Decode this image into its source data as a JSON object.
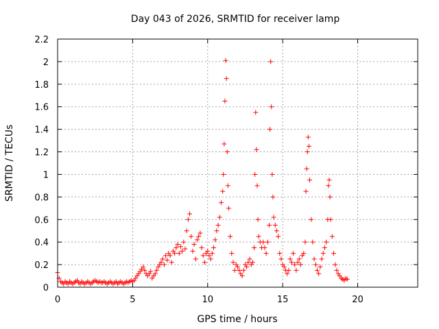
{
  "chart_data": {
    "type": "scatter",
    "title": "Day 043 of 2026, SRMTID for receiver lamp",
    "xlabel": "GPS time / hours",
    "ylabel": "SRMTID / TECUs",
    "xlim": [
      0,
      24
    ],
    "ylim": [
      0,
      2.2
    ],
    "xticks": [
      0,
      5,
      10,
      15,
      20
    ],
    "yticks": [
      0,
      0.2,
      0.4,
      0.6,
      0.8,
      1,
      1.2,
      1.4,
      1.6,
      1.8,
      2,
      2.2
    ],
    "ytick_labels": [
      "0",
      "0.2",
      "0.4",
      "0.6",
      "0.8",
      "1",
      "1.2",
      "1.4",
      "1.6",
      "1.8",
      "2",
      "2.2"
    ],
    "grid": true,
    "marker": "+",
    "color": "#ff0000",
    "series": [
      {
        "name": "lamp",
        "x": [
          0.0,
          0.1,
          0.2,
          0.3,
          0.4,
          0.5,
          0.6,
          0.7,
          0.8,
          0.9,
          1.0,
          1.1,
          1.2,
          1.3,
          1.4,
          1.5,
          1.6,
          1.7,
          1.8,
          1.9,
          2.0,
          2.1,
          2.2,
          2.3,
          2.4,
          2.5,
          2.6,
          2.7,
          2.8,
          2.9,
          3.0,
          3.1,
          3.2,
          3.3,
          3.4,
          3.5,
          3.6,
          3.7,
          3.8,
          3.9,
          4.0,
          4.1,
          4.2,
          4.3,
          4.4,
          4.5,
          4.6,
          4.7,
          4.8,
          4.9,
          5.0,
          5.1,
          5.2,
          5.3,
          5.4,
          5.5,
          5.6,
          5.7,
          5.8,
          5.9,
          6.0,
          6.1,
          6.2,
          6.3,
          6.4,
          6.5,
          6.6,
          6.7,
          6.8,
          6.9,
          7.0,
          7.1,
          7.2,
          7.3,
          7.4,
          7.5,
          7.6,
          7.7,
          7.8,
          7.9,
          8.0,
          8.1,
          8.2,
          8.3,
          8.4,
          8.5,
          8.6,
          8.7,
          8.8,
          8.9,
          9.0,
          9.1,
          9.2,
          9.3,
          9.4,
          9.5,
          9.6,
          9.7,
          9.8,
          9.9,
          10.0,
          10.1,
          10.2,
          10.3,
          10.4,
          10.5,
          10.6,
          10.7,
          10.8,
          10.9,
          11.0,
          11.05,
          11.1,
          11.15,
          11.2,
          11.25,
          11.3,
          11.35,
          11.4,
          11.5,
          11.6,
          11.7,
          11.8,
          11.9,
          12.0,
          12.1,
          12.2,
          12.3,
          12.4,
          12.5,
          12.6,
          12.7,
          12.8,
          12.9,
          13.0,
          13.1,
          13.15,
          13.2,
          13.25,
          13.3,
          13.35,
          13.4,
          13.5,
          13.6,
          13.7,
          13.8,
          13.9,
          14.0,
          14.1,
          14.15,
          14.2,
          14.25,
          14.3,
          14.35,
          14.4,
          14.5,
          14.6,
          14.7,
          14.8,
          14.9,
          15.0,
          15.1,
          15.2,
          15.3,
          15.4,
          15.5,
          15.6,
          15.7,
          15.8,
          15.9,
          16.0,
          16.1,
          16.2,
          16.3,
          16.4,
          16.5,
          16.55,
          16.6,
          16.65,
          16.7,
          16.75,
          16.8,
          16.9,
          17.0,
          17.1,
          17.2,
          17.3,
          17.4,
          17.5,
          17.6,
          17.7,
          17.8,
          17.9,
          18.0,
          18.05,
          18.1,
          18.15,
          18.2,
          18.3,
          18.4,
          18.5,
          18.6,
          18.7,
          18.8,
          18.9,
          19.0,
          19.1,
          19.2,
          19.3
        ],
        "y": [
          0.13,
          0.08,
          0.05,
          0.04,
          0.03,
          0.05,
          0.04,
          0.03,
          0.05,
          0.04,
          0.03,
          0.04,
          0.05,
          0.06,
          0.04,
          0.03,
          0.05,
          0.04,
          0.03,
          0.04,
          0.05,
          0.04,
          0.03,
          0.04,
          0.05,
          0.06,
          0.05,
          0.04,
          0.05,
          0.04,
          0.04,
          0.05,
          0.04,
          0.03,
          0.04,
          0.05,
          0.04,
          0.03,
          0.04,
          0.05,
          0.03,
          0.04,
          0.05,
          0.04,
          0.03,
          0.04,
          0.05,
          0.04,
          0.05,
          0.06,
          0.05,
          0.06,
          0.08,
          0.1,
          0.12,
          0.14,
          0.16,
          0.18,
          0.15,
          0.12,
          0.1,
          0.12,
          0.14,
          0.08,
          0.1,
          0.12,
          0.15,
          0.18,
          0.2,
          0.22,
          0.25,
          0.2,
          0.28,
          0.24,
          0.3,
          0.28,
          0.22,
          0.32,
          0.3,
          0.35,
          0.38,
          0.3,
          0.36,
          0.32,
          0.4,
          0.34,
          0.5,
          0.6,
          0.65,
          0.45,
          0.32,
          0.38,
          0.25,
          0.42,
          0.45,
          0.48,
          0.35,
          0.28,
          0.22,
          0.3,
          0.32,
          0.28,
          0.25,
          0.3,
          0.35,
          0.42,
          0.5,
          0.55,
          0.62,
          0.75,
          0.85,
          1.0,
          1.27,
          1.65,
          2.01,
          1.85,
          1.2,
          0.9,
          0.7,
          0.45,
          0.3,
          0.22,
          0.15,
          0.2,
          0.18,
          0.15,
          0.12,
          0.1,
          0.15,
          0.2,
          0.18,
          0.22,
          0.25,
          0.2,
          0.22,
          0.35,
          1.0,
          1.55,
          1.22,
          0.9,
          0.6,
          0.45,
          0.4,
          0.35,
          0.4,
          0.35,
          0.3,
          0.4,
          0.55,
          1.4,
          2.0,
          1.6,
          1.0,
          0.8,
          0.62,
          0.55,
          0.5,
          0.45,
          0.3,
          0.25,
          0.2,
          0.18,
          0.15,
          0.12,
          0.15,
          0.25,
          0.22,
          0.3,
          0.2,
          0.15,
          0.22,
          0.25,
          0.2,
          0.28,
          0.3,
          0.4,
          0.85,
          1.05,
          1.2,
          1.33,
          1.25,
          0.95,
          0.6,
          0.4,
          0.25,
          0.2,
          0.15,
          0.12,
          0.18,
          0.25,
          0.3,
          0.35,
          0.4,
          0.6,
          0.9,
          0.95,
          0.8,
          0.6,
          0.45,
          0.3,
          0.2,
          0.15,
          0.12,
          0.1,
          0.08,
          0.07,
          0.06,
          0.08,
          0.07
        ]
      }
    ]
  }
}
